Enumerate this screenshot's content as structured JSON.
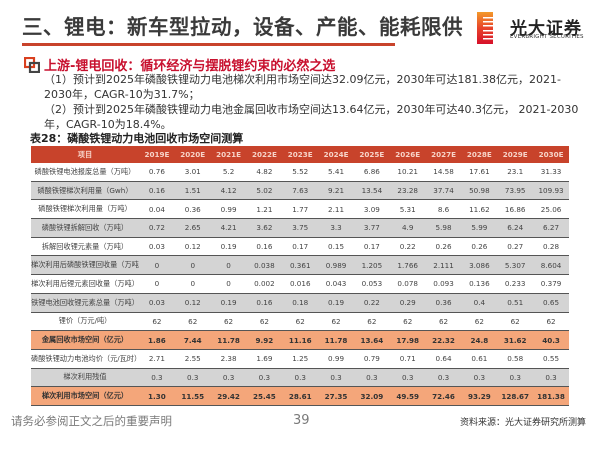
{
  "header": {
    "title": "三、锂电：新车型拉动，设备、产能、能耗限供",
    "logo": {
      "name_cn": "光大证券",
      "name_en": "EVERBRIGHT SECURITIES",
      "icon": "everbright-logo-icon"
    }
  },
  "section": {
    "icon": "overlapping-squares-icon",
    "heading": "上游-锂电回收：循环经济与摆脱锂约束的必然之选",
    "bullets": [
      "（1）预计到2025年磷酸铁锂动力电池梯次利用市场空间达32.09亿元，2030年可达181.38亿元，2021-2030年，CAGR-10为31.7%；",
      "（2）预计到2025年磷酸铁锂动力电池金属回收市场空间达13.64亿元，2030年可达40.3亿元， 2021-2030年，CAGR-10为18.4%。"
    ]
  },
  "table": {
    "caption": "表28：磷酸铁锂动力电池回收市场空间测算",
    "columns": [
      "项目",
      "2019E",
      "2020E",
      "2021E",
      "2022E",
      "2023E",
      "2024E",
      "2025E",
      "2026E",
      "2027E",
      "2028E",
      "2029E",
      "2030E"
    ],
    "rows": [
      {
        "style": "white",
        "cells": [
          "磷酸铁锂电池报废总量（万吨）",
          "0.76",
          "3.01",
          "5.2",
          "4.82",
          "5.52",
          "5.41",
          "6.86",
          "10.21",
          "14.58",
          "17.61",
          "23.1",
          "31.33"
        ]
      },
      {
        "style": "gray",
        "cells": [
          "磷酸铁锂梯次利用量（Gwh）",
          "0.16",
          "1.51",
          "4.12",
          "5.02",
          "7.63",
          "9.21",
          "13.54",
          "23.28",
          "37.74",
          "50.98",
          "73.95",
          "109.93"
        ]
      },
      {
        "style": "white",
        "cells": [
          "磷酸铁锂梯次利用量（万吨）",
          "0.04",
          "0.36",
          "0.99",
          "1.21",
          "1.77",
          "2.11",
          "3.09",
          "5.31",
          "8.6",
          "11.62",
          "16.86",
          "25.06"
        ]
      },
      {
        "style": "gray",
        "cells": [
          "磷酸铁锂拆解回收（万吨）",
          "0.72",
          "2.65",
          "4.21",
          "3.62",
          "3.75",
          "3.3",
          "3.77",
          "4.9",
          "5.98",
          "5.99",
          "6.24",
          "6.27"
        ]
      },
      {
        "style": "white",
        "cells": [
          "拆解回收锂元素量（万吨）",
          "0.03",
          "0.12",
          "0.19",
          "0.16",
          "0.17",
          "0.15",
          "0.17",
          "0.22",
          "0.26",
          "0.26",
          "0.27",
          "0.28"
        ]
      },
      {
        "style": "gray",
        "cells": [
          "梯次利用后磷酸铁锂回收量（万吨）",
          "0",
          "0",
          "0",
          "0.038",
          "0.361",
          "0.989",
          "1.205",
          "1.766",
          "2.111",
          "3.086",
          "5.307",
          "8.604"
        ]
      },
      {
        "style": "white",
        "cells": [
          "梯次利用后锂元素回收量（万吨）",
          "0",
          "0",
          "0",
          "0.002",
          "0.016",
          "0.043",
          "0.053",
          "0.078",
          "0.093",
          "0.136",
          "0.233",
          "0.379"
        ]
      },
      {
        "style": "gray",
        "cells": [
          "铁锂电池回收锂元素总量（万吨）",
          "0.03",
          "0.12",
          "0.19",
          "0.16",
          "0.18",
          "0.19",
          "0.22",
          "0.29",
          "0.36",
          "0.4",
          "0.51",
          "0.65"
        ]
      },
      {
        "style": "white",
        "cells": [
          "锂价（万元/吨）",
          "62",
          "62",
          "62",
          "62",
          "62",
          "62",
          "62",
          "62",
          "62",
          "62",
          "62",
          "62"
        ]
      },
      {
        "style": "orange",
        "cells": [
          "金属回收市场空间（亿元）",
          "1.86",
          "7.44",
          "11.78",
          "9.92",
          "11.16",
          "11.78",
          "13.64",
          "17.98",
          "22.32",
          "24.8",
          "31.62",
          "40.3"
        ]
      },
      {
        "style": "white",
        "cells": [
          "磷酸铁锂动力电池均价（元/瓦时）",
          "2.71",
          "2.55",
          "2.38",
          "1.69",
          "1.25",
          "0.99",
          "0.79",
          "0.71",
          "0.64",
          "0.61",
          "0.58",
          "0.55"
        ]
      },
      {
        "style": "gray",
        "cells": [
          "梯次利用残值",
          "0.3",
          "0.3",
          "0.3",
          "0.3",
          "0.3",
          "0.3",
          "0.3",
          "0.3",
          "0.3",
          "0.3",
          "0.3",
          "0.3"
        ]
      },
      {
        "style": "orange",
        "cells": [
          "梯次利用市场空间（亿元）",
          "1.30",
          "11.55",
          "29.42",
          "25.45",
          "28.61",
          "27.35",
          "32.09",
          "49.59",
          "72.46",
          "93.29",
          "128.67",
          "181.38"
        ]
      }
    ]
  },
  "footer": {
    "disclaimer": "请务必参阅正文之后的重要声明",
    "page_number": "39",
    "source": "资料来源：光大证券研究所测算"
  },
  "colors": {
    "accent_red": "#c8432b",
    "heading_red": "#c8102e",
    "row_gray": "#d4d4d4",
    "row_orange": "#f4a67a"
  }
}
